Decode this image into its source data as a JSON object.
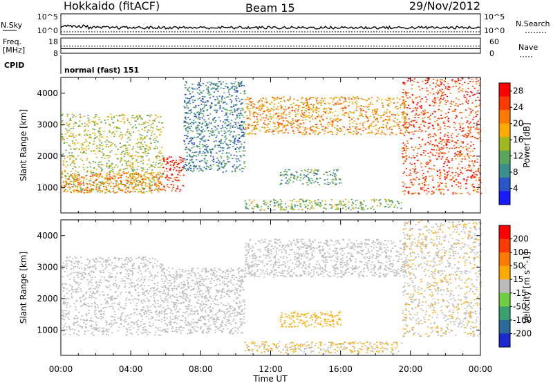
{
  "header": {
    "station": "Hokkaido (fitACF)",
    "beam": "Beam 15",
    "date": "29/Nov/2012"
  },
  "status_panel": {
    "nsky_label": "N.Sky",
    "nsky_ticks": [
      "10^5",
      "10^0"
    ],
    "nsky_ticks_right": [
      "10^5",
      "10^0"
    ],
    "nsearch_label": "N.Search",
    "freq_label": "Freq.",
    "freq_unit": "[MHz]",
    "freq_ticks": [
      "18",
      "8"
    ],
    "freq_value_mhz": 11,
    "nave_label": "Nave",
    "nave_ticks": [
      "60",
      "0"
    ],
    "nave_value": 28,
    "cpid_label": "CPID",
    "cpid_text": "normal (fast) 151"
  },
  "chart_data": [
    {
      "type": "heatmap",
      "name": "Power",
      "ylabel": "Slant Range [km]",
      "xlabel": "",
      "x_ticks": [
        "00:00",
        "04:00",
        "08:00",
        "12:00",
        "16:00",
        "20:00",
        "00:00"
      ],
      "y_ticks": [
        "1000",
        "2000",
        "3000",
        "4000"
      ],
      "y_range_km": [
        200,
        4500
      ],
      "x_range_hours": [
        0,
        24
      ],
      "colorbar": {
        "label": "Power [dB]",
        "ticks": [
          "4",
          "8",
          "12",
          "16",
          "20",
          "24",
          "28"
        ],
        "range": [
          0,
          30
        ],
        "colors": [
          "#1a1aff",
          "#2a55c8",
          "#3a8f8a",
          "#5aa55a",
          "#a0b820",
          "#ffaa00",
          "#ff7a00",
          "#ff3a00",
          "#ff0000"
        ]
      },
      "regions": [
        {
          "t": [
            0.0,
            5.8
          ],
          "r": [
            850,
            3350
          ],
          "v": 15
        },
        {
          "t": [
            0.0,
            5.8
          ],
          "r": [
            850,
            1500
          ],
          "v": 21
        },
        {
          "t": [
            5.8,
            7.0
          ],
          "r": [
            900,
            2000
          ],
          "v": 27
        },
        {
          "t": [
            7.0,
            10.5
          ],
          "r": [
            1500,
            4400
          ],
          "v": 8
        },
        {
          "t": [
            10.5,
            19.8
          ],
          "r": [
            2700,
            3900
          ],
          "v": 20
        },
        {
          "t": [
            12.5,
            16.0
          ],
          "r": [
            1100,
            1600
          ],
          "v": 10
        },
        {
          "t": [
            10.5,
            19.5
          ],
          "r": [
            300,
            650
          ],
          "v": 13
        },
        {
          "t": [
            19.5,
            24.0
          ],
          "r": [
            800,
            4500
          ],
          "v": 25
        }
      ]
    },
    {
      "type": "heatmap",
      "name": "Velocity",
      "ylabel": "Slant Range [km]",
      "xlabel": "Time UT",
      "x_ticks": [
        "00:00",
        "04:00",
        "08:00",
        "12:00",
        "16:00",
        "20:00",
        "00:00"
      ],
      "y_ticks": [
        "1000",
        "2000",
        "3000",
        "4000"
      ],
      "y_range_km": [
        200,
        4500
      ],
      "x_range_hours": [
        0,
        24
      ],
      "colorbar": {
        "label": "Velocity [m s^-1]",
        "ticks": [
          "200",
          "100",
          "50",
          "15",
          "-15",
          "-50",
          "-100",
          "-200"
        ],
        "range": [
          -250,
          250
        ],
        "colors": [
          "#1a2acc",
          "#2a6a9a",
          "#3aa070",
          "#70cc40",
          "#bbbbbb",
          "#ffaa00",
          "#ff7a00",
          "#ff3a00",
          "#ff0000"
        ]
      },
      "regions": [
        {
          "t": [
            0.0,
            5.8
          ],
          "r": [
            850,
            3350
          ],
          "v": 0
        },
        {
          "t": [
            5.8,
            10.5
          ],
          "r": [
            900,
            3000
          ],
          "v": 0
        },
        {
          "t": [
            10.5,
            19.8
          ],
          "r": [
            2700,
            3900
          ],
          "v": 0
        },
        {
          "t": [
            12.5,
            16.0
          ],
          "r": [
            1100,
            1600
          ],
          "v": 60
        },
        {
          "t": [
            10.5,
            19.5
          ],
          "r": [
            300,
            650
          ],
          "v": 30
        },
        {
          "t": [
            19.5,
            24.0
          ],
          "r": [
            800,
            4500
          ],
          "v": 20
        }
      ]
    }
  ]
}
